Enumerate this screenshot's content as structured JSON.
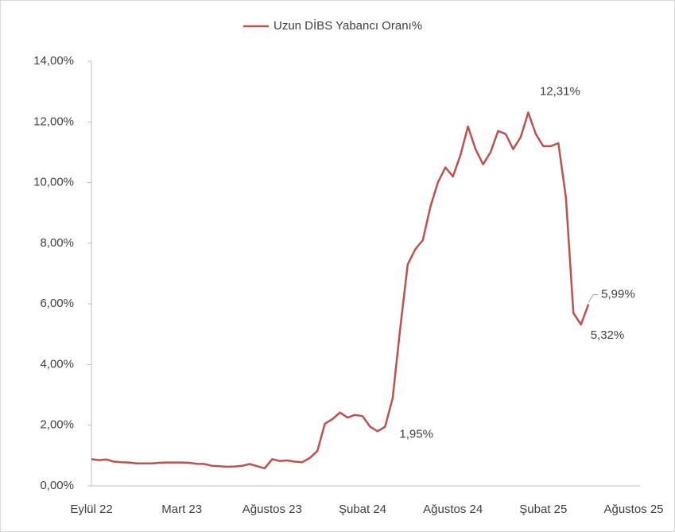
{
  "chart_data": {
    "type": "line",
    "legend": "top",
    "grid": false,
    "categories": [
      "Eylül 22",
      null,
      null,
      null,
      null,
      null,
      null,
      null,
      null,
      null,
      null,
      null,
      "Mart 23",
      null,
      null,
      null,
      null,
      null,
      null,
      null,
      null,
      null,
      null,
      null,
      "Ağustos 23",
      null,
      null,
      null,
      null,
      null,
      null,
      null,
      null,
      null,
      null,
      null,
      "Şubat 24",
      null,
      null,
      null,
      null,
      null,
      null,
      null,
      null,
      null,
      null,
      null,
      "Ağustos 24",
      null,
      null,
      null,
      null,
      null,
      null,
      null,
      null,
      null,
      null,
      null,
      "Şubat 25",
      null,
      null,
      null,
      null,
      null,
      null,
      null,
      null,
      null,
      null,
      null,
      "Ağustos 25"
    ],
    "series": [
      {
        "name": "Uzun DİBS Yabancı Oranı%",
        "color": "#c0504d",
        "values": [
          0.88,
          0.85,
          0.87,
          0.8,
          0.78,
          0.77,
          0.74,
          0.74,
          0.74,
          0.76,
          0.77,
          0.77,
          0.77,
          0.76,
          0.73,
          0.72,
          0.66,
          0.65,
          0.63,
          0.64,
          0.66,
          0.72,
          0.65,
          0.58,
          0.88,
          0.82,
          0.84,
          0.8,
          0.78,
          0.92,
          1.15,
          2.05,
          2.2,
          2.42,
          2.25,
          2.34,
          2.3,
          1.95,
          1.8,
          1.95,
          2.9,
          5.2,
          7.3,
          7.8,
          8.1,
          9.2,
          10.0,
          10.5,
          10.2,
          10.9,
          11.85,
          11.1,
          10.6,
          11.0,
          11.7,
          11.6,
          11.1,
          11.5,
          12.31,
          11.6,
          11.2,
          11.2,
          11.3,
          9.5,
          5.7,
          5.32,
          5.99,
          null,
          null,
          null,
          null,
          null,
          null
        ],
        "value_labels": [
          null,
          null,
          null,
          null,
          null,
          null,
          null,
          null,
          null,
          null,
          null,
          null,
          null,
          null,
          null,
          null,
          null,
          null,
          null,
          null,
          null,
          null,
          null,
          null,
          null,
          null,
          null,
          null,
          null,
          null,
          null,
          null,
          null,
          null,
          null,
          null,
          null,
          null,
          null,
          "1,95%",
          null,
          null,
          null,
          null,
          null,
          null,
          null,
          null,
          null,
          null,
          null,
          null,
          null,
          null,
          null,
          null,
          null,
          null,
          "12,31%",
          null,
          null,
          null,
          null,
          null,
          null,
          "5,32%",
          "5,99%",
          null,
          null,
          null,
          null,
          null,
          null
        ]
      }
    ],
    "ylim": [
      0,
      14
    ],
    "yticks": [
      {
        "value": 0,
        "label": "0,00%"
      },
      {
        "value": 2,
        "label": "2,00%"
      },
      {
        "value": 4,
        "label": "4,00%"
      },
      {
        "value": 6,
        "label": "6,00%"
      },
      {
        "value": 8,
        "label": "8,00%"
      },
      {
        "value": 10,
        "label": "10,00%"
      },
      {
        "value": 12,
        "label": "12,00%"
      },
      {
        "value": 14,
        "label": "14,00%"
      }
    ]
  }
}
